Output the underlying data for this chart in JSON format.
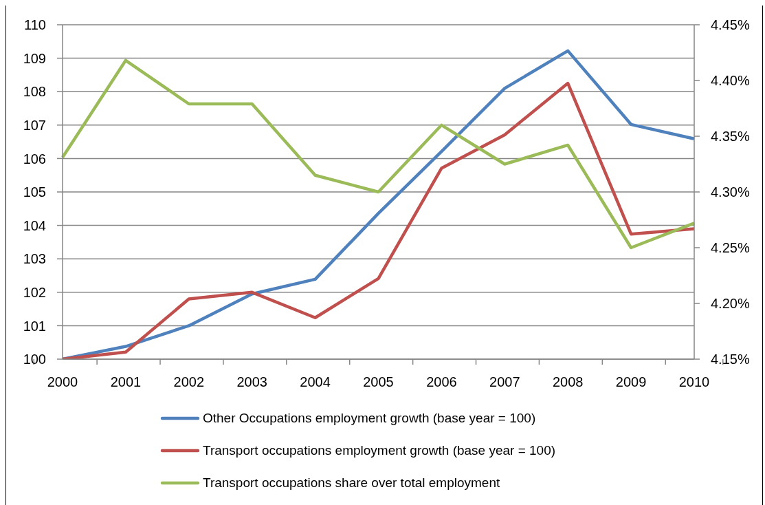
{
  "chart_data": {
    "type": "line",
    "categories": [
      "2000",
      "2001",
      "2002",
      "2003",
      "2004",
      "2005",
      "2006",
      "2007",
      "2008",
      "2009",
      "2010"
    ],
    "series": [
      {
        "name": "Other Occupations employment growth (base year = 100)",
        "color": "#4f81bd",
        "values": [
          100,
          100.38,
          101.0,
          101.95,
          102.39,
          104.36,
          106.21,
          108.1,
          109.22,
          107.02,
          106.59
        ]
      },
      {
        "name": "Transport occupations employment growth (base year = 100)",
        "color": "#c0504d",
        "values": [
          100,
          100.21,
          101.8,
          102.0,
          101.24,
          102.41,
          105.71,
          106.71,
          108.25,
          103.74,
          103.9
        ]
      },
      {
        "name": "Transport occupations share over total employment",
        "color": "#9bbb59",
        "axis": "y2",
        "values": [
          4.331,
          4.418,
          4.379,
          4.379,
          4.315,
          4.3,
          4.36,
          4.325,
          4.342,
          4.25,
          4.272
        ]
      }
    ],
    "ylim": [
      100,
      110
    ],
    "yticks": [
      100,
      101,
      102,
      103,
      104,
      105,
      106,
      107,
      108,
      109,
      110
    ],
    "y2lim": [
      4.15,
      4.45
    ],
    "y2ticks": [
      {
        "value": 4.15,
        "label": "4.15%"
      },
      {
        "value": 4.2,
        "label": "4.20%"
      },
      {
        "value": 4.25,
        "label": "4.25%"
      },
      {
        "value": 4.3,
        "label": "4.30%"
      },
      {
        "value": 4.35,
        "label": "4.35%"
      },
      {
        "value": 4.4,
        "label": "4.40%"
      },
      {
        "value": 4.45,
        "label": "4.45%"
      }
    ],
    "grid": "y",
    "legend": "bottom",
    "marker": "none",
    "line_style": "solid"
  }
}
